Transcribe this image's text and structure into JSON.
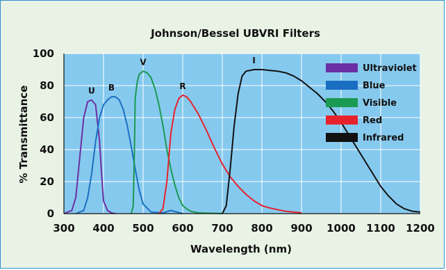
{
  "chart_data": {
    "type": "line",
    "title": "Johnson/Bessel UBVRI Filters",
    "xlabel": "Wavelength (nm)",
    "ylabel": "% Transmittance",
    "xlim": [
      300,
      1200
    ],
    "ylim": [
      0,
      100
    ],
    "xticks": [
      300,
      400,
      500,
      600,
      700,
      800,
      900,
      1000,
      1100,
      1200
    ],
    "yticks": [
      0,
      20,
      40,
      60,
      80,
      100
    ],
    "grid": true,
    "legend": "top-right",
    "series": [
      {
        "name": "Ultraviolet",
        "label": "U",
        "color": "#6b2fa3",
        "x": [
          300,
          320,
          330,
          340,
          350,
          360,
          370,
          380,
          390,
          395,
          400,
          410,
          420,
          430
        ],
        "y": [
          0,
          2,
          10,
          35,
          60,
          70,
          71,
          68,
          45,
          25,
          8,
          2,
          0.5,
          0
        ]
      },
      {
        "name": "Blue",
        "label": "B",
        "color": "#1a6fc2",
        "x": [
          330,
          350,
          360,
          370,
          380,
          390,
          400,
          410,
          420,
          430,
          440,
          450,
          460,
          470,
          480,
          490,
          500,
          520,
          550,
          570,
          600
        ],
        "y": [
          0,
          2,
          10,
          25,
          45,
          60,
          68,
          71,
          73,
          73,
          71,
          65,
          55,
          42,
          28,
          15,
          6,
          1,
          0.5,
          2,
          0
        ]
      },
      {
        "name": "Visible",
        "label": "V",
        "color": "#1a9a52",
        "x": [
          470,
          475,
          478,
          480,
          485,
          490,
          500,
          510,
          520,
          530,
          540,
          550,
          560,
          570,
          580,
          590,
          600,
          610,
          620,
          640,
          660,
          680,
          700
        ],
        "y": [
          0,
          5,
          40,
          72,
          82,
          87,
          89,
          88,
          85,
          78,
          68,
          55,
          40,
          28,
          18,
          10,
          5,
          3,
          1.5,
          0.5,
          0.3,
          0.2,
          0
        ]
      },
      {
        "name": "Red",
        "label": "R",
        "color": "#e8222d",
        "x": [
          540,
          550,
          560,
          570,
          580,
          590,
          600,
          610,
          620,
          640,
          660,
          680,
          700,
          720,
          740,
          760,
          780,
          800,
          820,
          840,
          860,
          880,
          900
        ],
        "y": [
          0,
          3,
          20,
          50,
          65,
          72,
          74,
          73,
          70,
          62,
          52,
          41,
          31,
          23,
          17,
          12,
          8,
          5,
          3.5,
          2.5,
          1.5,
          1,
          0.5
        ]
      },
      {
        "name": "Infrared",
        "label": "I",
        "color": "#111111",
        "x": [
          700,
          710,
          720,
          730,
          740,
          750,
          760,
          780,
          800,
          820,
          840,
          860,
          880,
          900,
          920,
          940,
          960,
          980,
          1000,
          1020,
          1040,
          1060,
          1080,
          1100,
          1120,
          1140,
          1160,
          1180,
          1200
        ],
        "y": [
          0,
          5,
          28,
          55,
          75,
          86,
          89,
          90,
          90,
          89.5,
          89,
          88,
          86,
          83,
          79,
          75,
          70,
          64,
          57,
          49,
          41,
          33,
          25,
          17,
          11,
          6,
          3,
          1.5,
          1
        ]
      }
    ]
  }
}
